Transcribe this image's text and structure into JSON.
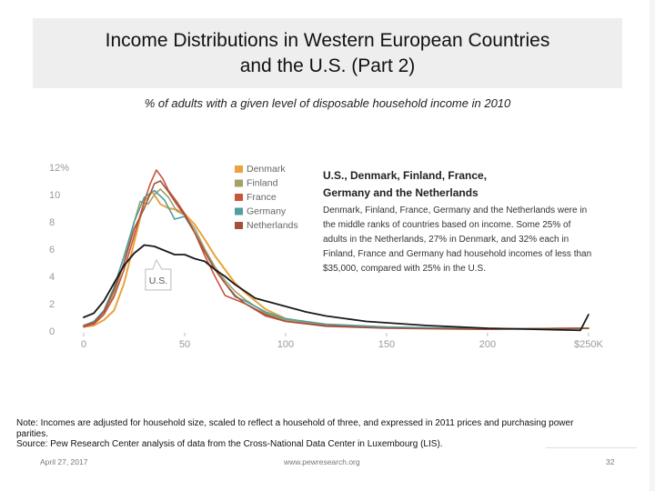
{
  "slide": {
    "title_line1": "Income Distributions in Western European Countries",
    "title_line2": "and the U.S. (Part 2)",
    "subtitle": "% of adults with a given level of disposable household income in 2010",
    "note_line1": "Note: Incomes are adjusted for household size, scaled to reflect a household of three, and expressed in 2011 prices and purchasing power",
    "note_line2": "parities.",
    "note_line3": "Source: Pew Research Center analysis of data from the Cross-National Data Center in Luxembourg (LIS).",
    "date": "April 27, 2017",
    "url": "www.pewresearch.org",
    "page_number": "32"
  },
  "chart_data": {
    "type": "line",
    "x_tick_labels": [
      "0",
      "50",
      "100",
      "150",
      "200",
      "$250K"
    ],
    "x_ticks": [
      0,
      50,
      100,
      150,
      200,
      250
    ],
    "y_tick_labels": [
      "12%",
      "10",
      "8",
      "6",
      "4",
      "2",
      "0"
    ],
    "y_ticks": [
      12,
      10,
      8,
      6,
      4,
      2,
      0
    ],
    "xlim": [
      0,
      255
    ],
    "ylim": [
      0,
      12
    ],
    "grid": false,
    "legend_position": "top-center",
    "series": [
      {
        "name": "Denmark",
        "color": "#e8a33c",
        "width": 2,
        "points": [
          [
            0,
            0.3
          ],
          [
            5,
            0.4
          ],
          [
            10,
            0.8
          ],
          [
            15,
            1.5
          ],
          [
            20,
            3.5
          ],
          [
            25,
            6.5
          ],
          [
            30,
            9.5
          ],
          [
            34,
            10.2
          ],
          [
            38,
            9.3
          ],
          [
            42,
            9.0
          ],
          [
            46,
            8.9
          ],
          [
            50,
            8.6
          ],
          [
            55,
            7.8
          ],
          [
            60,
            6.7
          ],
          [
            65,
            5.5
          ],
          [
            70,
            4.5
          ],
          [
            75,
            3.5
          ],
          [
            80,
            2.8
          ],
          [
            90,
            1.6
          ],
          [
            100,
            0.9
          ],
          [
            120,
            0.4
          ],
          [
            150,
            0.25
          ],
          [
            200,
            0.15
          ],
          [
            250,
            0.2
          ]
        ]
      },
      {
        "name": "Finland",
        "color": "#a3a06a",
        "width": 1.6,
        "points": [
          [
            0,
            0.3
          ],
          [
            5,
            0.5
          ],
          [
            10,
            1.2
          ],
          [
            15,
            2.7
          ],
          [
            20,
            5.0
          ],
          [
            25,
            8.0
          ],
          [
            28,
            9.5
          ],
          [
            32,
            9.3
          ],
          [
            35,
            10.0
          ],
          [
            38,
            10.4
          ],
          [
            42,
            9.8
          ],
          [
            46,
            8.8
          ],
          [
            50,
            8.5
          ],
          [
            55,
            7.5
          ],
          [
            60,
            6.0
          ],
          [
            65,
            4.7
          ],
          [
            70,
            3.7
          ],
          [
            75,
            2.9
          ],
          [
            80,
            2.3
          ],
          [
            90,
            1.3
          ],
          [
            100,
            0.8
          ],
          [
            120,
            0.4
          ],
          [
            150,
            0.25
          ],
          [
            200,
            0.15
          ],
          [
            250,
            0.2
          ]
        ]
      },
      {
        "name": "France",
        "color": "#c8553d",
        "width": 1.6,
        "points": [
          [
            0,
            0.3
          ],
          [
            5,
            0.5
          ],
          [
            10,
            1.2
          ],
          [
            15,
            2.5
          ],
          [
            20,
            4.5
          ],
          [
            25,
            7.0
          ],
          [
            30,
            9.5
          ],
          [
            33,
            10.8
          ],
          [
            36,
            11.8
          ],
          [
            39,
            11.2
          ],
          [
            42,
            10.3
          ],
          [
            46,
            9.5
          ],
          [
            50,
            8.6
          ],
          [
            55,
            7.2
          ],
          [
            60,
            5.5
          ],
          [
            65,
            4.0
          ],
          [
            70,
            2.6
          ],
          [
            75,
            2.3
          ],
          [
            80,
            2.0
          ],
          [
            90,
            1.1
          ],
          [
            100,
            0.7
          ],
          [
            120,
            0.4
          ],
          [
            150,
            0.25
          ],
          [
            200,
            0.15
          ],
          [
            250,
            0.2
          ]
        ]
      },
      {
        "name": "Germany",
        "color": "#4f9ea0",
        "width": 1.6,
        "points": [
          [
            0,
            0.4
          ],
          [
            5,
            0.7
          ],
          [
            10,
            1.5
          ],
          [
            15,
            3.2
          ],
          [
            20,
            5.5
          ],
          [
            25,
            8.0
          ],
          [
            30,
            9.8
          ],
          [
            35,
            10.3
          ],
          [
            40,
            9.6
          ],
          [
            45,
            8.2
          ],
          [
            50,
            8.4
          ],
          [
            55,
            7.2
          ],
          [
            60,
            5.8
          ],
          [
            65,
            4.5
          ],
          [
            70,
            3.5
          ],
          [
            75,
            2.5
          ],
          [
            80,
            2.2
          ],
          [
            90,
            1.4
          ],
          [
            100,
            0.9
          ],
          [
            120,
            0.5
          ],
          [
            150,
            0.3
          ],
          [
            200,
            0.15
          ],
          [
            250,
            0.2
          ]
        ]
      },
      {
        "name": "Netherlands",
        "color": "#a5513a",
        "width": 1.6,
        "points": [
          [
            0,
            0.4
          ],
          [
            5,
            0.6
          ],
          [
            10,
            1.4
          ],
          [
            15,
            3.0
          ],
          [
            20,
            5.0
          ],
          [
            25,
            7.5
          ],
          [
            30,
            9.0
          ],
          [
            35,
            10.8
          ],
          [
            38,
            11.0
          ],
          [
            42,
            10.2
          ],
          [
            46,
            9.3
          ],
          [
            50,
            8.5
          ],
          [
            55,
            7.2
          ],
          [
            60,
            5.8
          ],
          [
            65,
            4.5
          ],
          [
            70,
            3.5
          ],
          [
            75,
            2.6
          ],
          [
            80,
            2.0
          ],
          [
            90,
            1.2
          ],
          [
            100,
            0.7
          ],
          [
            120,
            0.35
          ],
          [
            150,
            0.2
          ],
          [
            200,
            0.12
          ],
          [
            250,
            0.2
          ]
        ]
      },
      {
        "name": "U.S.",
        "color": "#1a1a1a",
        "width": 1.8,
        "points": [
          [
            0,
            1.0
          ],
          [
            5,
            1.3
          ],
          [
            10,
            2.2
          ],
          [
            15,
            3.5
          ],
          [
            20,
            4.8
          ],
          [
            25,
            5.7
          ],
          [
            30,
            6.3
          ],
          [
            35,
            6.2
          ],
          [
            40,
            5.9
          ],
          [
            45,
            5.6
          ],
          [
            50,
            5.6
          ],
          [
            55,
            5.3
          ],
          [
            60,
            5.1
          ],
          [
            65,
            4.5
          ],
          [
            70,
            4.0
          ],
          [
            75,
            3.4
          ],
          [
            80,
            2.9
          ],
          [
            85,
            2.4
          ],
          [
            90,
            2.2
          ],
          [
            100,
            1.8
          ],
          [
            110,
            1.4
          ],
          [
            120,
            1.1
          ],
          [
            130,
            0.9
          ],
          [
            140,
            0.7
          ],
          [
            150,
            0.6
          ],
          [
            170,
            0.4
          ],
          [
            200,
            0.2
          ],
          [
            230,
            0.1
          ],
          [
            246,
            0.05
          ],
          [
            250,
            1.2
          ]
        ]
      }
    ],
    "callout": "U.S.",
    "annotation_heading_line1": "U.S., Denmark, Finland, France,",
    "annotation_heading_line2": "Germany and the Netherlands",
    "annotation_body_lines": [
      "Denmark, Finland, France, Germany and the Netherlands were in",
      "the middle ranks of countries based on income. Some 25% of",
      "adults in the Netherlands, 27% in Denmark, and 32% each in",
      "Finland, France and Germany had household incomes of less than",
      "$35,000, compared with 25% in the U.S."
    ]
  }
}
